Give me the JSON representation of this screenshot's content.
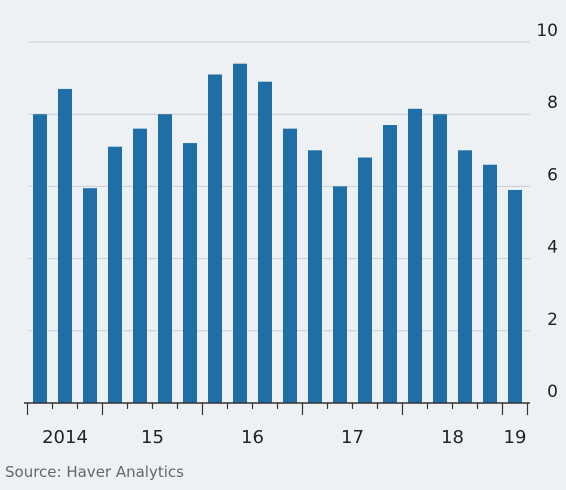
{
  "chart_data": {
    "type": "bar",
    "categories": [
      "2014",
      "2014",
      "2014",
      "15",
      "15",
      "15",
      "15",
      "16",
      "16",
      "16",
      "16",
      "17",
      "17",
      "17",
      "17",
      "18",
      "18",
      "18",
      "18",
      "19"
    ],
    "values": [
      8.0,
      8.7,
      5.95,
      7.1,
      7.6,
      8.0,
      7.2,
      9.1,
      9.4,
      8.9,
      7.6,
      7.0,
      6.0,
      6.8,
      7.7,
      8.15,
      8.0,
      7.0,
      6.6,
      5.9
    ],
    "color": "#1f6ea6",
    "ylim": [
      0,
      10
    ],
    "yticks": [
      0,
      2,
      4,
      6,
      8,
      10
    ],
    "grid": true,
    "source": "Source: Haver Analytics"
  }
}
